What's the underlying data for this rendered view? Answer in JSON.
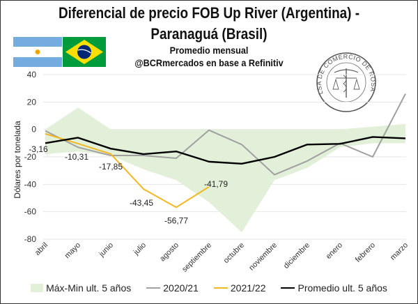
{
  "header": {
    "title_line1": "Diferencial de precio FOB Up River (Argentina) -",
    "title_line2": "Paranaguá (Brasil)",
    "subtitle": "Promedio mensual",
    "source": "@BCRmercados en base a Refinitiv",
    "flags": [
      "argentina-flag",
      "brazil-flag"
    ],
    "seal_text": "BOLSA DE COMERCIO DE ROSARIO"
  },
  "chart_data": {
    "type": "line",
    "title": "Diferencial de precio FOB Up River (Argentina) - Paranaguá (Brasil)",
    "subtitle": "Promedio mensual",
    "xlabel": "",
    "ylabel": "Dólares por tonelada",
    "ylim": [
      -80,
      40
    ],
    "yticks": [
      40,
      20,
      0,
      -20,
      -40,
      -60,
      -80
    ],
    "grid": true,
    "legend_position": "bottom",
    "categories": [
      "abril",
      "mayo",
      "junio",
      "julio",
      "agosto",
      "septiembre",
      "octubre",
      "noviembre",
      "diciembre",
      "enero",
      "febrero",
      "marzo"
    ],
    "band": {
      "name": "Máx-Min ult. 5 años",
      "color": "#e2efd9",
      "max": [
        0,
        16,
        0,
        0,
        0,
        0,
        0,
        0,
        0,
        0,
        2,
        4
      ],
      "min": [
        -18,
        -16,
        -19,
        -29,
        -37,
        -53,
        -75,
        -37,
        -28,
        -13,
        -10,
        -10
      ]
    },
    "series": [
      {
        "name": "2020/21",
        "color": "#a0a0a0",
        "values": [
          -1,
          -13,
          -19,
          -19,
          -21,
          -0.5,
          -11,
          -33,
          -23,
          -10,
          -20,
          26
        ]
      },
      {
        "name": "2021/22",
        "color": "#f2b824",
        "values": [
          -3.16,
          -10.31,
          -17.85,
          -43.45,
          -56.77,
          -41.79,
          null,
          null,
          null,
          null,
          null,
          null
        ],
        "labels": [
          "-3,16",
          "-10,31",
          "-17,85",
          "-43,45",
          "-56,77",
          "-41,79"
        ]
      },
      {
        "name": "Promedio ult. 5 años",
        "color": "#000000",
        "values": [
          -10,
          -6,
          -14,
          -18,
          -16,
          -23.5,
          -25,
          -20,
          -11,
          -10.5,
          -5.5,
          -6.5
        ]
      }
    ]
  },
  "legend": {
    "items": [
      {
        "label": "Máx-Min ult. 5 años",
        "kind": "area",
        "color": "#e2efd9"
      },
      {
        "label": "2020/21",
        "kind": "line",
        "color": "#a0a0a0"
      },
      {
        "label": "2021/22",
        "kind": "line",
        "color": "#f2b824"
      },
      {
        "label": "Promedio ult. 5 años",
        "kind": "line",
        "color": "#000000"
      }
    ]
  }
}
